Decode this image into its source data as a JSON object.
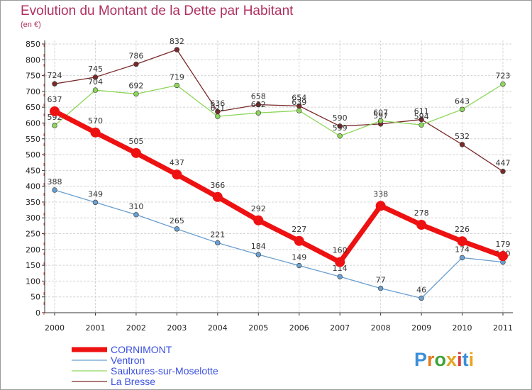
{
  "title": "Evolution du Montant de la Dette par Habitant",
  "subtitle": "(en €)",
  "logo": "Proxiti",
  "chart_data": {
    "type": "line",
    "title": "Evolution du Montant de la Dette par Habitant",
    "subtitle": "(en €)",
    "xlabel": "",
    "ylabel": "",
    "ylim": [
      0,
      850
    ],
    "yticks": [
      0,
      50,
      100,
      150,
      200,
      250,
      300,
      350,
      400,
      450,
      500,
      550,
      600,
      650,
      700,
      750,
      800,
      850
    ],
    "grid": true,
    "legend_position": "bottom-left",
    "x": [
      "2000",
      "2001",
      "2002",
      "2003",
      "2004",
      "2005",
      "2006",
      "2007",
      "2008",
      "2009",
      "2010",
      "2011"
    ],
    "series": [
      {
        "name": "CORNIMONT",
        "color": "#ee1111",
        "values": [
          637,
          570,
          505,
          437,
          366,
          292,
          227,
          160,
          338,
          278,
          226,
          179
        ]
      },
      {
        "name": "Ventron",
        "color": "#6a9fd0",
        "values": [
          388,
          349,
          310,
          265,
          221,
          184,
          149,
          114,
          77,
          46,
          174,
          160
        ]
      },
      {
        "name": "Saulxures-sur-Moselotte",
        "color": "#8ed65a",
        "values": [
          592,
          704,
          692,
          719,
          621,
          632,
          639,
          559,
          607,
          594,
          643,
          723
        ]
      },
      {
        "name": "La Bresse",
        "color": "#7a2a2a",
        "values": [
          724,
          745,
          786,
          832,
          636,
          658,
          654,
          590,
          597,
          611,
          532,
          447
        ]
      }
    ]
  }
}
